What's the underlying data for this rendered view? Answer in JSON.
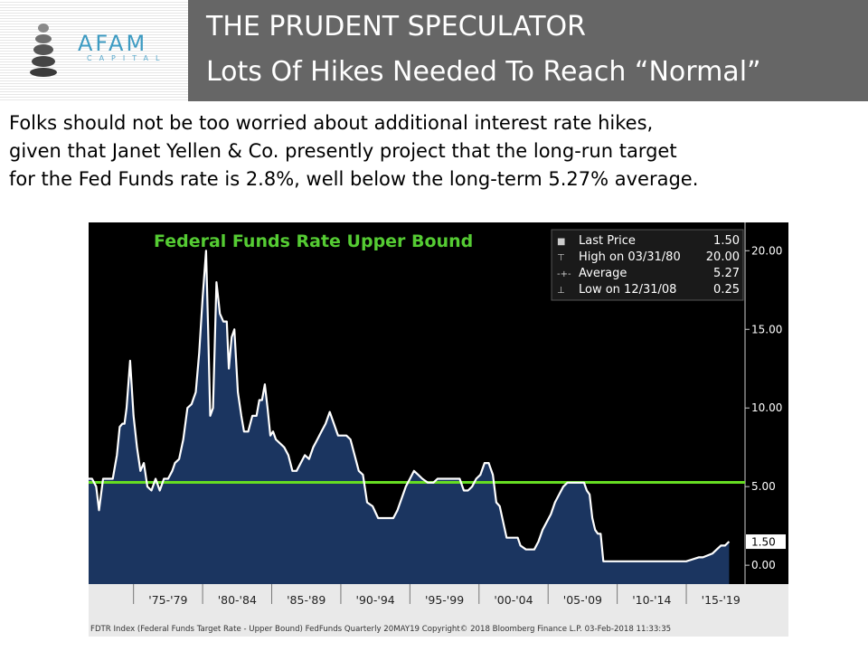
{
  "header": {
    "logo_name": "AFAM",
    "logo_sub": "CAPITAL",
    "title_line1": "THE PRUDENT SPECULATOR",
    "title_line2": "Lots Of Hikes Needed To Reach “Normal”"
  },
  "intro": {
    "line1": "Folks should not be too worried about additional interest rate hikes,",
    "line2": "given that Janet Yellen & Co. presently project that the long-run target",
    "line3": "for the Fed Funds rate is 2.8%, well below the long-term 5.27% average."
  },
  "colors": {
    "header_bg": "#666666",
    "chart_bg": "#000000",
    "series_line": "#ffffff",
    "area_fill": "#1b3560",
    "average_line": "#66dd22",
    "title_green": "#55cc33"
  },
  "chart_data": {
    "type": "area",
    "title": "Federal Funds Rate Upper Bound",
    "x_categories": [
      "'75-'79",
      "'80-'84",
      "'85-'89",
      "'90-'94",
      "'95-'99",
      "'00-'04",
      "'05-'09",
      "'10-'14",
      "'15-'19"
    ],
    "x_range": [
      1971.75,
      2019.25
    ],
    "ylim": [
      -1.2,
      21.8
    ],
    "yticks": [
      "20.00",
      "15.00",
      "10.00",
      "5.00",
      "0.00"
    ],
    "ytick_values": [
      20,
      15,
      10,
      5,
      0
    ],
    "average": 5.27,
    "last_price_label": "1.50",
    "legend": [
      {
        "marker": "■",
        "label": "Last Price",
        "value": "1.50"
      },
      {
        "marker": "⊤",
        "label": "High on 03/31/80",
        "value": "20.00"
      },
      {
        "marker": "-+-",
        "label": "Average",
        "value": "5.27"
      },
      {
        "marker": "⊥",
        "label": "Low on 12/31/08",
        "value": "0.25"
      }
    ],
    "series": [
      {
        "name": "Federal Funds Rate Upper Bound",
        "x": [
          1971.75,
          1972.0,
          1972.3,
          1972.5,
          1972.8,
          1973.0,
          1973.25,
          1973.5,
          1973.8,
          1974.0,
          1974.2,
          1974.35,
          1974.5,
          1974.75,
          1975.0,
          1975.25,
          1975.5,
          1975.75,
          1976.0,
          1976.3,
          1976.6,
          1976.9,
          1977.2,
          1977.5,
          1977.8,
          1978.0,
          1978.3,
          1978.6,
          1978.9,
          1979.2,
          1979.5,
          1979.75,
          1980.0,
          1980.25,
          1980.4,
          1980.55,
          1980.75,
          1981.0,
          1981.25,
          1981.5,
          1981.75,
          1981.9,
          1982.1,
          1982.3,
          1982.55,
          1982.8,
          1983.0,
          1983.3,
          1983.6,
          1983.9,
          1984.1,
          1984.3,
          1984.5,
          1984.7,
          1984.9,
          1985.1,
          1985.3,
          1985.6,
          1985.9,
          1986.2,
          1986.5,
          1986.8,
          1987.1,
          1987.4,
          1987.7,
          1988.0,
          1988.3,
          1988.6,
          1988.9,
          1989.2,
          1989.5,
          1989.8,
          1990.1,
          1990.4,
          1990.7,
          1991.0,
          1991.3,
          1991.6,
          1991.9,
          1992.3,
          1992.7,
          1993.0,
          1993.4,
          1993.8,
          1994.1,
          1994.4,
          1994.7,
          1995.0,
          1995.3,
          1995.6,
          1995.9,
          1996.3,
          1996.7,
          1997.0,
          1997.4,
          1997.8,
          1998.2,
          1998.6,
          1998.9,
          1999.2,
          1999.5,
          1999.8,
          2000.1,
          2000.4,
          2000.7,
          2001.0,
          2001.25,
          2001.5,
          2001.75,
          2002.0,
          2002.5,
          2002.8,
          2003.0,
          2003.4,
          2003.7,
          2004.0,
          2004.3,
          2004.6,
          2004.9,
          2005.2,
          2005.5,
          2005.8,
          2006.1,
          2006.4,
          2006.7,
          2007.0,
          2007.3,
          2007.6,
          2007.8,
          2008.0,
          2008.2,
          2008.4,
          2008.6,
          2008.8,
          2009.0,
          2010.0,
          2011.0,
          2012.0,
          2013.0,
          2014.0,
          2015.0,
          2015.9,
          2016.2,
          2016.9,
          2017.2,
          2017.5,
          2017.8,
          2018.1
        ],
        "y": [
          5.5,
          5.5,
          5.0,
          3.5,
          5.5,
          5.5,
          5.5,
          5.5,
          7.0,
          8.8,
          9.0,
          9.0,
          10.0,
          13.0,
          9.5,
          7.5,
          6.0,
          6.5,
          5.0,
          4.75,
          5.5,
          4.75,
          5.5,
          5.5,
          6.0,
          6.5,
          6.75,
          8.0,
          10.0,
          10.25,
          11.0,
          13.5,
          17.0,
          20.0,
          15.0,
          9.5,
          10.0,
          18.0,
          16.0,
          15.5,
          15.5,
          12.5,
          14.5,
          15.0,
          11.0,
          9.5,
          8.5,
          8.5,
          9.5,
          9.5,
          10.5,
          10.5,
          11.5,
          10.0,
          8.25,
          8.5,
          8.0,
          7.75,
          7.5,
          7.0,
          6.0,
          6.0,
          6.5,
          7.0,
          6.75,
          7.5,
          8.0,
          8.5,
          9.0,
          9.75,
          9.0,
          8.25,
          8.25,
          8.25,
          8.0,
          7.0,
          6.0,
          5.75,
          4.0,
          3.75,
          3.0,
          3.0,
          3.0,
          3.0,
          3.5,
          4.25,
          5.0,
          5.5,
          6.0,
          5.75,
          5.5,
          5.25,
          5.25,
          5.5,
          5.5,
          5.5,
          5.5,
          5.5,
          4.75,
          4.75,
          5.0,
          5.5,
          5.75,
          6.5,
          6.5,
          5.75,
          4.0,
          3.75,
          2.75,
          1.75,
          1.75,
          1.75,
          1.25,
          1.0,
          1.0,
          1.0,
          1.5,
          2.25,
          2.75,
          3.25,
          4.0,
          4.5,
          5.0,
          5.25,
          5.25,
          5.25,
          5.25,
          5.25,
          4.75,
          4.5,
          3.0,
          2.25,
          2.0,
          2.0,
          0.25,
          0.25,
          0.25,
          0.25,
          0.25,
          0.25,
          0.25,
          0.5,
          0.5,
          0.75,
          1.0,
          1.25,
          1.25,
          1.5
        ]
      }
    ],
    "footer": "FDTR Index (Federal Funds Target Rate - Upper Bound) FedFunds  Quarterly 20MAY19 Copyright© 2018 Bloomberg Finance L.P.  03-Feb-2018 11:33:35"
  }
}
